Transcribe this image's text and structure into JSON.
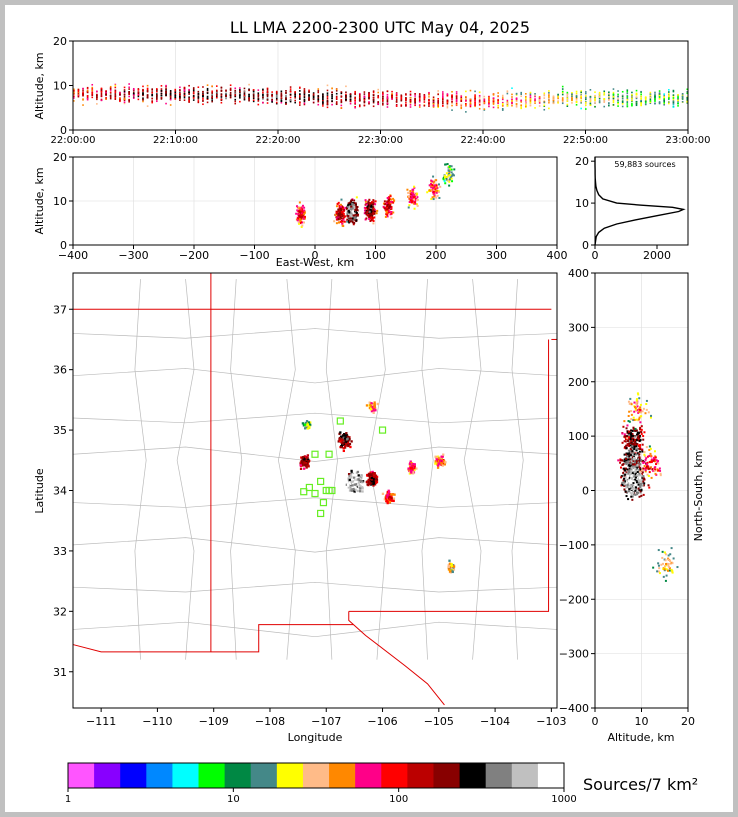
{
  "chart_data": [
    {
      "id": "time_altitude",
      "type": "heatmap",
      "title": "LL LMA 2200-2300 UTC May 04, 2025",
      "xlabel": "",
      "ylabel": "Altitude, km",
      "xlim": [
        0,
        60
      ],
      "ylim": [
        0,
        20
      ],
      "x_tick_labels": [
        "22:00:00",
        "22:10:00",
        "22:20:00",
        "22:30:00",
        "22:40:00",
        "22:50:00",
        "23:00:00"
      ],
      "y_ticks": [
        0,
        10,
        20
      ],
      "altitude_profile_minutes": [
        0,
        10,
        20,
        30,
        40,
        50,
        60
      ],
      "altitude_core_km": [
        8,
        8,
        7.5,
        7,
        6.5,
        7,
        7
      ],
      "grid": true
    },
    {
      "id": "eastwest_altitude",
      "type": "heatmap",
      "xlabel": "East-West, km",
      "ylabel": "Altitude, km",
      "xlim": [
        -400,
        400
      ],
      "ylim": [
        0,
        20
      ],
      "x_ticks": [
        -400,
        -300,
        -200,
        -100,
        0,
        100,
        200,
        300,
        400
      ],
      "y_ticks": [
        0,
        10,
        20
      ],
      "clusters": [
        {
          "x": -25,
          "alt": 7,
          "density": 120
        },
        {
          "x": 40,
          "alt": 7,
          "density": 200
        },
        {
          "x": 60,
          "alt": 7.5,
          "density": 600
        },
        {
          "x": 90,
          "alt": 8,
          "density": 300
        },
        {
          "x": 120,
          "alt": 9,
          "density": 150
        },
        {
          "x": 160,
          "alt": 11,
          "density": 100
        },
        {
          "x": 195,
          "alt": 13,
          "density": 80
        },
        {
          "x": 220,
          "alt": 16,
          "density": 30
        }
      ],
      "grid": true
    },
    {
      "id": "altitude_histogram",
      "type": "line",
      "annotation": "59,883 sources",
      "xlim": [
        0,
        3000
      ],
      "ylim": [
        0,
        21
      ],
      "x_ticks": [
        0,
        2000
      ],
      "y_ticks": [
        0,
        10,
        20
      ],
      "series": [
        {
          "altitude": [
            0,
            2,
            3,
            4,
            5,
            6,
            7,
            8,
            8.5,
            9,
            9.5,
            10,
            11,
            12,
            13,
            14,
            15,
            16,
            17,
            18,
            19,
            20,
            21
          ],
          "count": [
            0,
            40,
            120,
            300,
            700,
            1300,
            2000,
            2700,
            2850,
            2500,
            1500,
            700,
            250,
            120,
            60,
            30,
            15,
            8,
            4,
            2,
            1,
            0,
            0
          ]
        }
      ],
      "grid": false
    },
    {
      "id": "plan_view",
      "type": "heatmap",
      "xlabel": "Longitude",
      "ylabel": "Latitude",
      "xlim": [
        -111.5,
        -102.9
      ],
      "ylim": [
        30.4,
        37.6
      ],
      "x_ticks": [
        -111,
        -110,
        -109,
        -108,
        -107,
        -106,
        -105,
        -104,
        -103
      ],
      "y_ticks": [
        31,
        32,
        33,
        34,
        35,
        36,
        37
      ],
      "clusters": [
        {
          "lon": -107.4,
          "lat": 34.5,
          "density": 200
        },
        {
          "lon": -106.7,
          "lat": 34.85,
          "density": 300
        },
        {
          "lon": -106.5,
          "lat": 34.15,
          "density": 800
        },
        {
          "lon": -106.2,
          "lat": 34.2,
          "density": 250
        },
        {
          "lon": -105.9,
          "lat": 33.9,
          "density": 100
        },
        {
          "lon": -106.2,
          "lat": 35.4,
          "density": 60
        },
        {
          "lon": -105.5,
          "lat": 34.4,
          "density": 70
        },
        {
          "lon": -105.0,
          "lat": 34.5,
          "density": 80
        },
        {
          "lon": -104.8,
          "lat": 32.75,
          "density": 40
        },
        {
          "lon": -107.35,
          "lat": 35.1,
          "density": 20
        }
      ],
      "stations": [
        {
          "lon": -107.3,
          "lat": 34.05
        },
        {
          "lon": -107.1,
          "lat": 34.15
        },
        {
          "lon": -107.0,
          "lat": 34.0
        },
        {
          "lon": -107.2,
          "lat": 33.95
        },
        {
          "lon": -107.4,
          "lat": 33.98
        },
        {
          "lon": -107.05,
          "lat": 33.8
        },
        {
          "lon": -107.1,
          "lat": 33.62
        },
        {
          "lon": -106.9,
          "lat": 34.0
        },
        {
          "lon": -107.2,
          "lat": 34.6
        },
        {
          "lon": -106.95,
          "lat": 34.6
        },
        {
          "lon": -106.75,
          "lat": 35.15
        },
        {
          "lon": -106.0,
          "lat": 35.0
        },
        {
          "lon": -106.95,
          "lat": 34.0
        }
      ],
      "grid": false
    },
    {
      "id": "altitude_northsouth",
      "type": "heatmap",
      "xlabel": "Altitude, km",
      "ylabel": "North-South, km",
      "xlim": [
        0,
        20
      ],
      "ylim": [
        -400,
        400
      ],
      "x_ticks": [
        0,
        10,
        20
      ],
      "y_ticks": [
        -400,
        -300,
        -200,
        -100,
        0,
        100,
        200,
        300,
        400
      ],
      "clusters": [
        {
          "alt": 8,
          "ns": 100,
          "density": 300
        },
        {
          "alt": 8,
          "ns": 60,
          "density": 500
        },
        {
          "alt": 8,
          "ns": 20,
          "density": 800
        },
        {
          "alt": 9,
          "ns": 150,
          "density": 60
        },
        {
          "alt": 12,
          "ns": 50,
          "density": 100
        },
        {
          "alt": 15,
          "ns": -135,
          "density": 40
        }
      ],
      "grid": true
    },
    {
      "id": "colorbar",
      "type": "table",
      "label": "Sources/7 km²",
      "scale": "log",
      "range": [
        1,
        1000
      ],
      "tick_labels": [
        "1",
        "10",
        "100",
        "1000"
      ],
      "colors": [
        "#ff55ff",
        "#8800ff",
        "#0000ff",
        "#0088ff",
        "#00ffff",
        "#00ff00",
        "#008844",
        "#448888",
        "#ffff00",
        "#ffbb88",
        "#ff8800",
        "#ff0088",
        "#ff0000",
        "#bb0000",
        "#880000",
        "#000000",
        "#808080",
        "#c0c0c0",
        "#ffffff"
      ]
    }
  ]
}
